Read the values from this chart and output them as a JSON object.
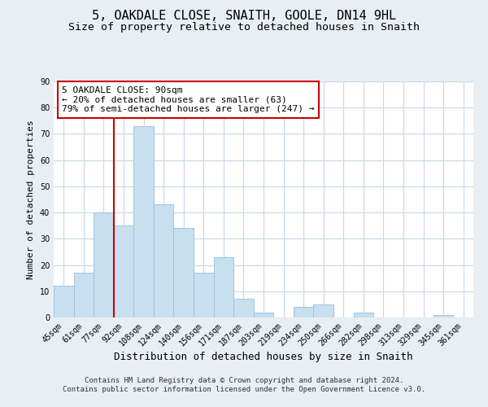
{
  "title": "5, OAKDALE CLOSE, SNAITH, GOOLE, DN14 9HL",
  "subtitle": "Size of property relative to detached houses in Snaith",
  "xlabel": "Distribution of detached houses by size in Snaith",
  "ylabel": "Number of detached properties",
  "bar_labels": [
    "45sqm",
    "61sqm",
    "77sqm",
    "92sqm",
    "108sqm",
    "124sqm",
    "140sqm",
    "156sqm",
    "171sqm",
    "187sqm",
    "203sqm",
    "219sqm",
    "234sqm",
    "250sqm",
    "266sqm",
    "282sqm",
    "298sqm",
    "313sqm",
    "329sqm",
    "345sqm",
    "361sqm"
  ],
  "bar_values": [
    12,
    17,
    40,
    35,
    73,
    43,
    34,
    17,
    23,
    7,
    2,
    0,
    4,
    5,
    0,
    2,
    0,
    0,
    0,
    1,
    0
  ],
  "bar_color": "#c8dff0",
  "bar_edge_color": "#a0c4e0",
  "vline_color": "#cc0000",
  "ylim": [
    0,
    90
  ],
  "yticks": [
    0,
    10,
    20,
    30,
    40,
    50,
    60,
    70,
    80,
    90
  ],
  "annotation_title": "5 OAKDALE CLOSE: 90sqm",
  "annotation_line1": "← 20% of detached houses are smaller (63)",
  "annotation_line2": "79% of semi-detached houses are larger (247) →",
  "annotation_box_color": "#ffffff",
  "annotation_box_edgecolor": "#cc0000",
  "footer_line1": "Contains HM Land Registry data © Crown copyright and database right 2024.",
  "footer_line2": "Contains public sector information licensed under the Open Government Licence v3.0.",
  "background_color": "#e8eef4",
  "plot_background_color": "#ffffff",
  "grid_color": "#c8d8e8",
  "title_fontsize": 11,
  "subtitle_fontsize": 9.5,
  "xlabel_fontsize": 9,
  "ylabel_fontsize": 8,
  "tick_fontsize": 7,
  "footer_fontsize": 6.5,
  "annotation_fontsize": 8
}
